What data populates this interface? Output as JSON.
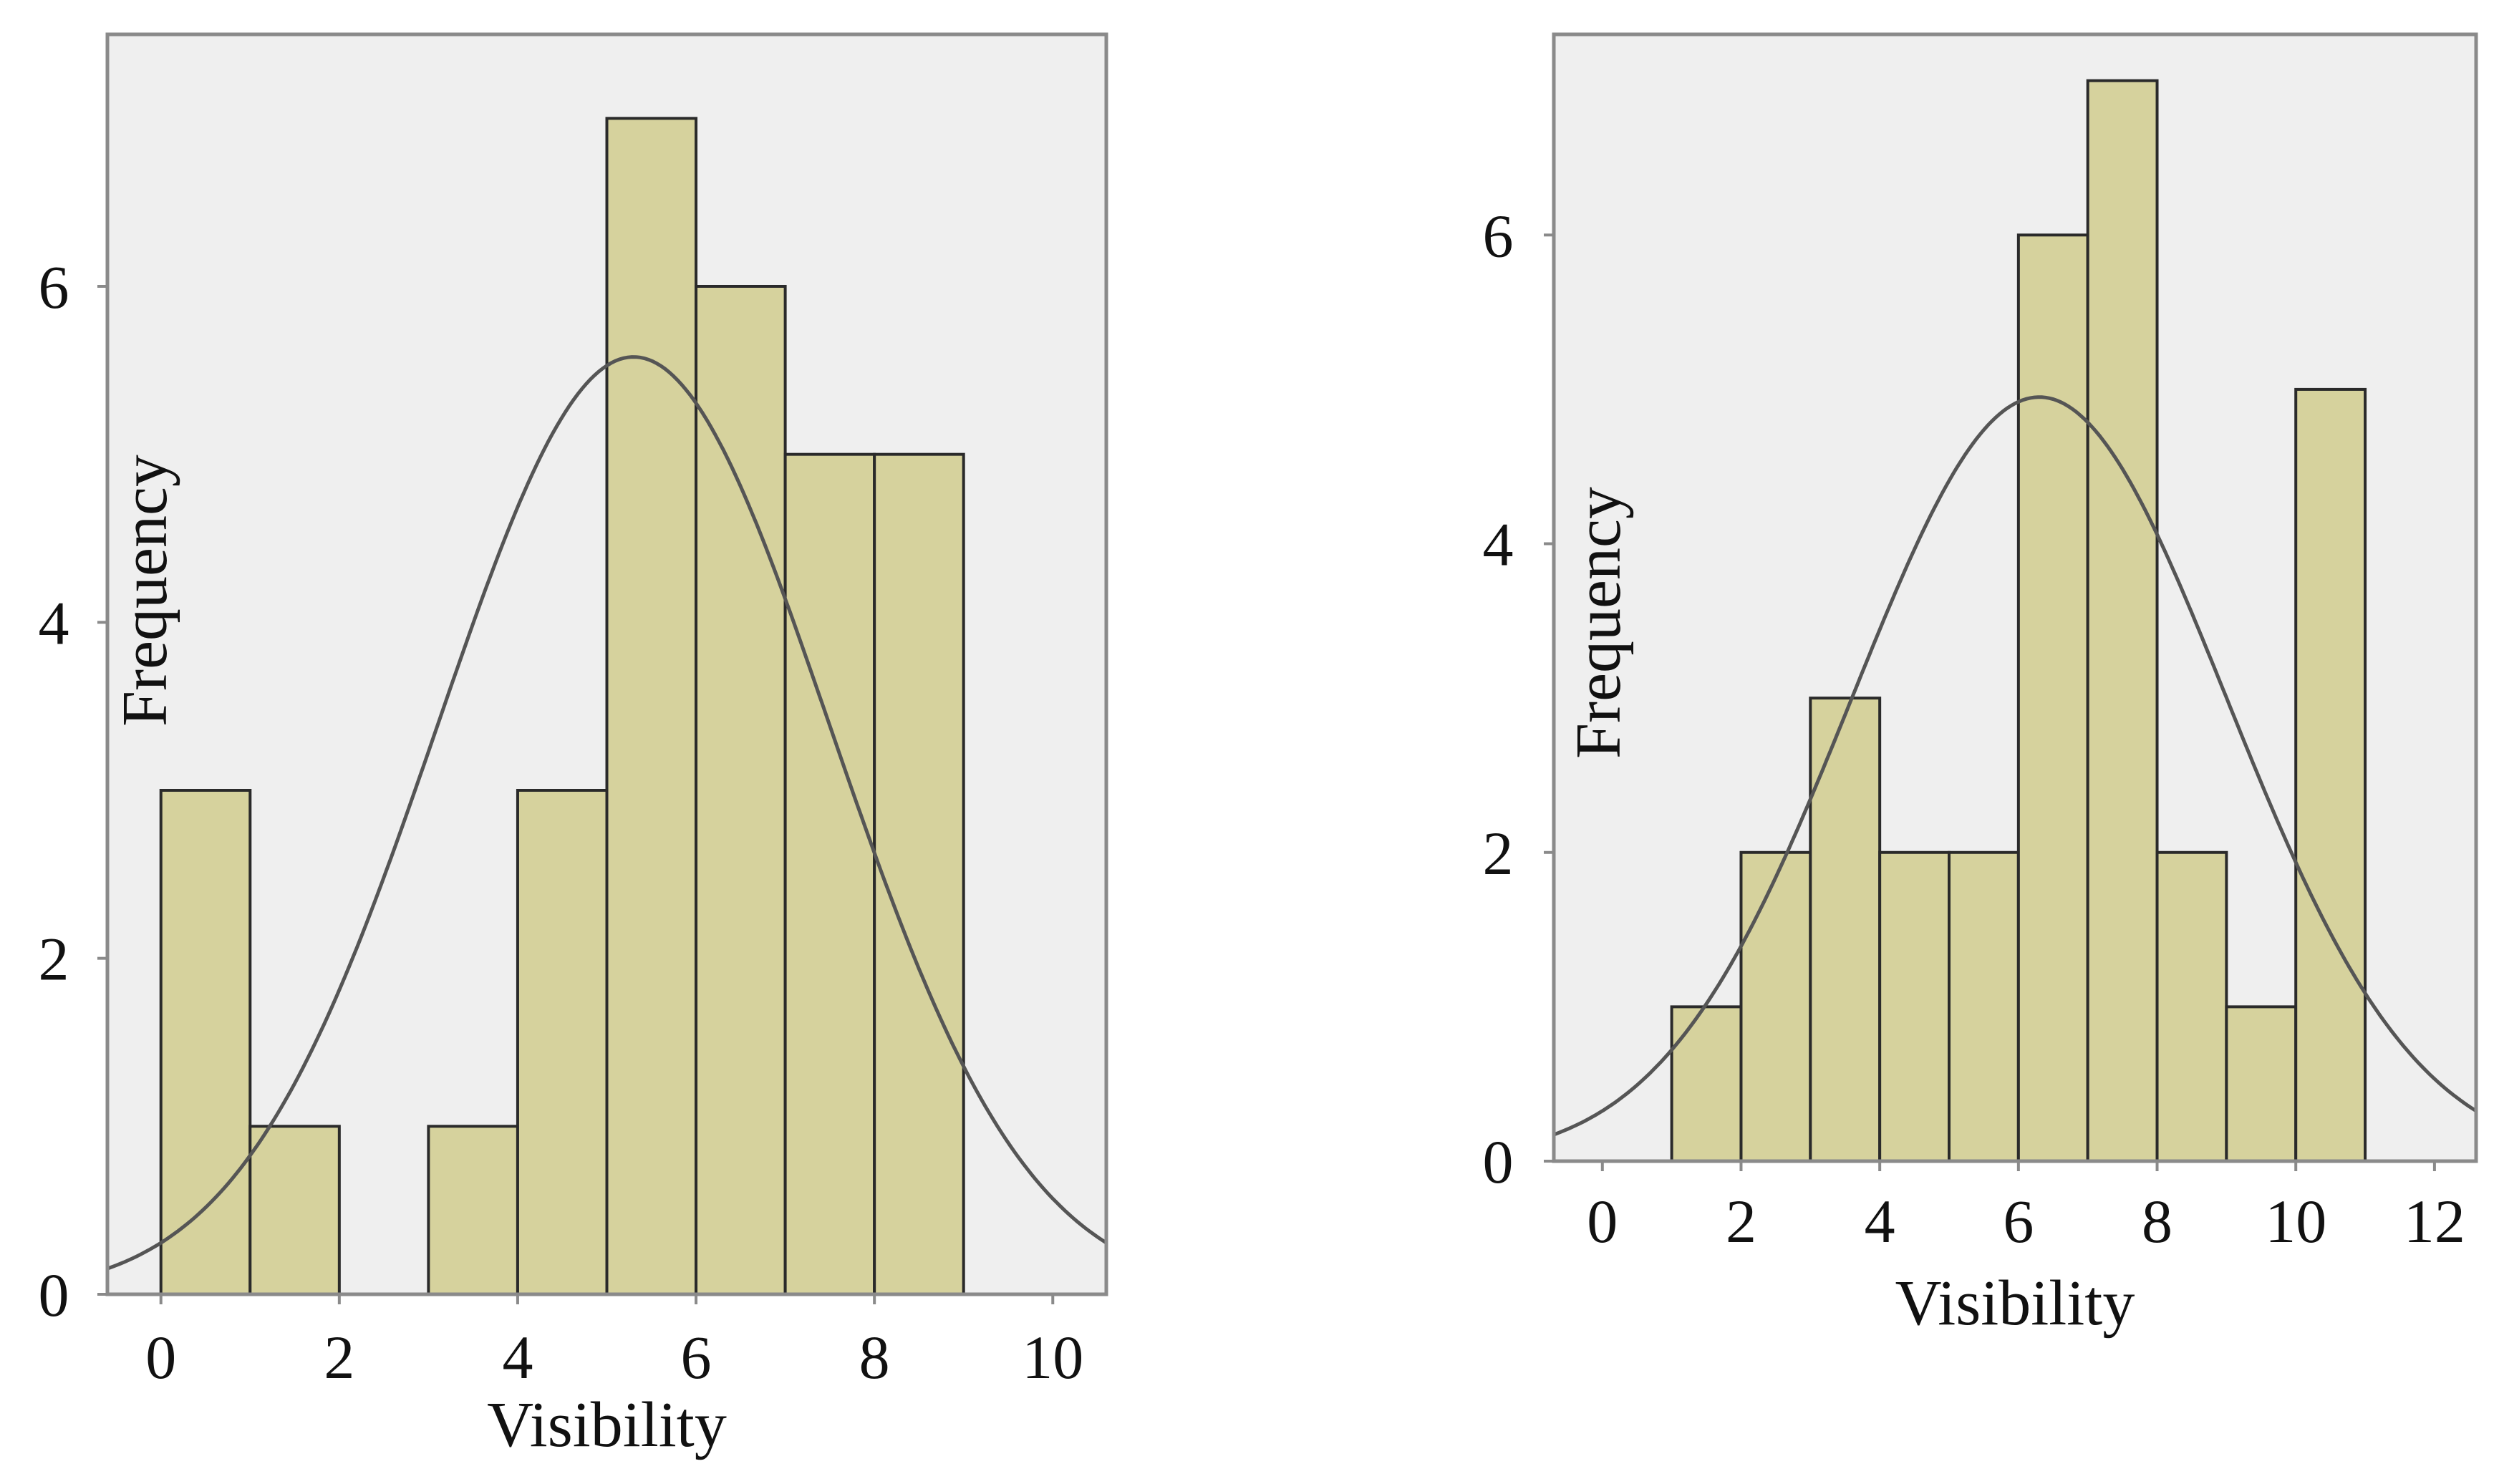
{
  "colors": {
    "plot_bg": "#efefef",
    "bar_fill": "#d6d29d",
    "bar_stroke": "#2a2a2a",
    "curve": "#555555",
    "frame": "#8a8a8a",
    "text": "#111111"
  },
  "chart_data": [
    {
      "type": "bar",
      "subtype": "histogram",
      "xlabel": "Visibility",
      "ylabel": "Frequency",
      "xlim": [
        -0.6,
        10.6
      ],
      "ylim": [
        0,
        7.5
      ],
      "xticks": [
        "0",
        "2",
        "4",
        "6",
        "8",
        "10"
      ],
      "yticks": [
        "0",
        "2",
        "4",
        "6"
      ],
      "bins": [
        {
          "start": 0,
          "end": 1,
          "count": 3
        },
        {
          "start": 1,
          "end": 2,
          "count": 1
        },
        {
          "start": 3,
          "end": 4,
          "count": 1
        },
        {
          "start": 4,
          "end": 5,
          "count": 3
        },
        {
          "start": 5,
          "end": 6,
          "count": 7
        },
        {
          "start": 6,
          "end": 7,
          "count": 6
        },
        {
          "start": 7,
          "end": 8,
          "count": 5
        },
        {
          "start": 8,
          "end": 9,
          "count": 5
        }
      ],
      "normal_curve": {
        "mean": 5.3,
        "sd": 2.2,
        "peak": 5.58
      }
    },
    {
      "type": "bar",
      "subtype": "histogram",
      "xlabel": "Visibility",
      "ylabel": "Frequency",
      "xlim": [
        -0.7,
        12.6
      ],
      "ylim": [
        0,
        7.3
      ],
      "xticks": [
        "0",
        "2",
        "4",
        "6",
        "8",
        "10",
        "12"
      ],
      "yticks": [
        "0",
        "2",
        "4",
        "6"
      ],
      "bins": [
        {
          "start": 1,
          "end": 2,
          "count": 1
        },
        {
          "start": 2,
          "end": 3,
          "count": 2
        },
        {
          "start": 3,
          "end": 4,
          "count": 3
        },
        {
          "start": 4,
          "end": 5,
          "count": 2
        },
        {
          "start": 5,
          "end": 6,
          "count": 2
        },
        {
          "start": 6,
          "end": 7,
          "count": 6
        },
        {
          "start": 7,
          "end": 8,
          "count": 7
        },
        {
          "start": 8,
          "end": 9,
          "count": 2
        },
        {
          "start": 9,
          "end": 10,
          "count": 1
        },
        {
          "start": 10,
          "end": 11,
          "count": 5
        }
      ],
      "normal_curve": {
        "mean": 6.3,
        "sd": 2.7,
        "peak": 4.95
      }
    }
  ]
}
